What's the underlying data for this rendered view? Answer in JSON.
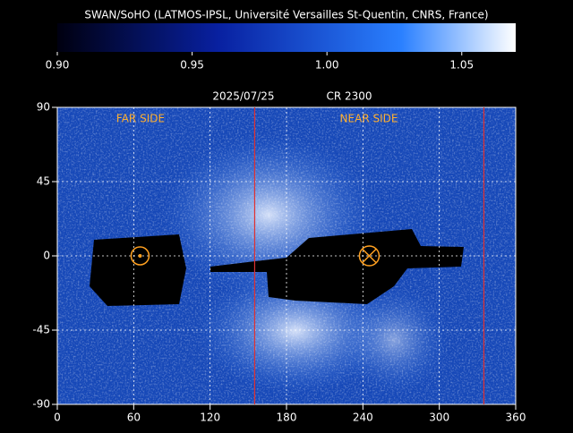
{
  "title": "SWAN/SoHO (LATMOS-IPSL, Université Versailles St-Quentin, CNRS, France)",
  "colorbar": {
    "range": [
      0.9,
      1.07
    ],
    "ticks": [
      {
        "value": 0.9,
        "label": "0.90"
      },
      {
        "value": 0.95,
        "label": "0.95"
      },
      {
        "value": 1.0,
        "label": "1.00"
      },
      {
        "value": 1.05,
        "label": "1.05"
      }
    ]
  },
  "map": {
    "date": "2025/07/25",
    "rotation": "CR 2300",
    "far_side": "FAR SIDE",
    "near_side": "NEAR SIDE",
    "xlim": [
      0,
      360
    ],
    "ylim": [
      -90,
      90
    ],
    "xticks": [
      0,
      60,
      120,
      180,
      240,
      300,
      360
    ],
    "yticks": [
      -90,
      -45,
      0,
      45,
      90
    ],
    "red_lines": [
      155,
      335
    ],
    "far_marker": [
      65,
      0
    ],
    "near_marker": [
      245,
      0
    ]
  }
}
